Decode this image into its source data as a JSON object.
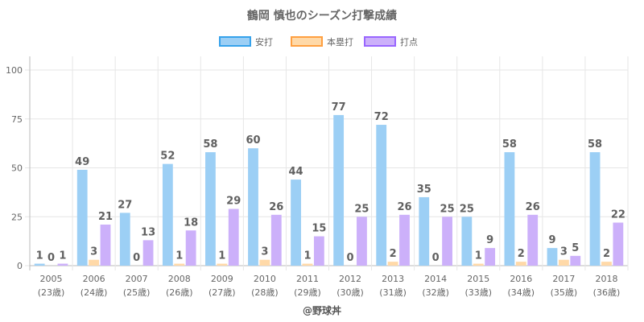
{
  "chart_data": {
    "type": "bar",
    "title": "鶴岡 慎也のシーズン打撃成績",
    "categories": [
      "2005",
      "2006",
      "2007",
      "2008",
      "2009",
      "2010",
      "2011",
      "2012",
      "2013",
      "2014",
      "2015",
      "2016",
      "2017",
      "2018"
    ],
    "sublabels": [
      "(23歳)",
      "(24歳)",
      "(25歳)",
      "(26歳)",
      "(27歳)",
      "(28歳)",
      "(29歳)",
      "(30歳)",
      "(31歳)",
      "(32歳)",
      "(33歳)",
      "(34歳)",
      "(35歳)",
      "(36歳)"
    ],
    "series": [
      {
        "name": "安打",
        "color": "#9ccff5",
        "border": "#36a2eb",
        "values": [
          1,
          49,
          27,
          52,
          58,
          60,
          44,
          77,
          72,
          35,
          25,
          58,
          9,
          58
        ]
      },
      {
        "name": "本塁打",
        "color": "#ffd9a8",
        "border": "#ff9f40",
        "values": [
          0,
          3,
          0,
          1,
          1,
          3,
          1,
          0,
          2,
          0,
          1,
          2,
          3,
          2
        ]
      },
      {
        "name": "打点",
        "color": "#ccb0fa",
        "border": "#9966ff",
        "values": [
          1,
          21,
          13,
          18,
          29,
          26,
          15,
          25,
          26,
          25,
          9,
          26,
          5,
          22
        ]
      }
    ],
    "yticks": [
      0,
      25,
      50,
      75,
      100
    ],
    "ylim": [
      0,
      107
    ],
    "legend": "top",
    "grid": true
  },
  "credit": "@野球丼"
}
